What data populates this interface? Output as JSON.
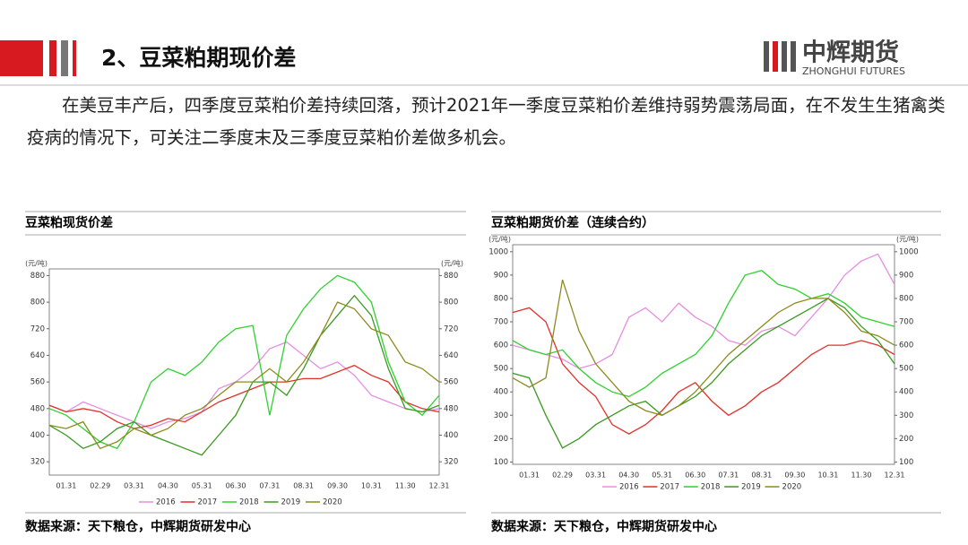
{
  "header": {
    "title": "2、豆菜粕期现价差",
    "logo": "中辉期货",
    "logo_sub": "ZHONGHUI FUTURES"
  },
  "paragraph": "在美豆丰产后，四季度豆菜粕价差持续回落，预计2021年一季度豆菜粕价差维持弱势震荡局面，在不发生生猪禽类疫病的情况下，可关注二季度末及三季度豆菜粕价差做多机会。",
  "chart_data": [
    {
      "type": "line",
      "title": "豆菜粕现货价差",
      "y_label": "(元/吨)",
      "y2_label": "(元/吨)",
      "source": "数据来源：天下粮仓，中辉期货研发中心",
      "categories": [
        null,
        "01.31",
        null,
        "02.29",
        null,
        "03.31",
        null,
        "04.30",
        null,
        "05.31",
        null,
        "06.30",
        null,
        "07.31",
        null,
        "08.31",
        null,
        "09.30",
        null,
        "10.31",
        null,
        "11.30",
        null,
        "12.31"
      ],
      "ylim": [
        280,
        900
      ],
      "yticks": [
        320,
        400,
        480,
        560,
        640,
        720,
        800,
        880
      ],
      "y2lim": [
        280,
        900
      ],
      "y2ticks": [
        320,
        400,
        480,
        560,
        640,
        720,
        800,
        880
      ],
      "series": [
        {
          "name": "2016",
          "color": "#e58ee0",
          "values": [
            490,
            470,
            500,
            480,
            460,
            440,
            420,
            440,
            450,
            470,
            540,
            560,
            600,
            660,
            680,
            640,
            600,
            620,
            580,
            520,
            500,
            480,
            470,
            480
          ]
        },
        {
          "name": "2017",
          "color": "#e0312a",
          "values": [
            490,
            470,
            480,
            470,
            440,
            420,
            430,
            450,
            440,
            470,
            500,
            520,
            540,
            560,
            560,
            570,
            570,
            590,
            610,
            580,
            560,
            500,
            480,
            470
          ]
        },
        {
          "name": "2018",
          "color": "#2fd12f",
          "values": [
            480,
            460,
            420,
            380,
            360,
            440,
            560,
            600,
            580,
            620,
            680,
            720,
            730,
            460,
            700,
            780,
            840,
            880,
            860,
            800,
            620,
            500,
            460,
            520
          ]
        },
        {
          "name": "2019",
          "color": "#3a9a20",
          "values": [
            430,
            400,
            360,
            380,
            420,
            440,
            400,
            380,
            360,
            340,
            400,
            460,
            560,
            560,
            520,
            600,
            700,
            760,
            820,
            760,
            600,
            480,
            470,
            490
          ]
        },
        {
          "name": "2020",
          "color": "#8c8a1e",
          "values": [
            430,
            420,
            440,
            360,
            380,
            420,
            400,
            420,
            460,
            480,
            520,
            560,
            560,
            600,
            560,
            620,
            700,
            800,
            780,
            720,
            700,
            620,
            600,
            560
          ]
        }
      ]
    },
    {
      "type": "line",
      "title": "豆菜粕期货价差（连续合约）",
      "y_label": "(元/吨)",
      "y2_label": "(元/吨)",
      "source": "数据来源：天下粮仓，中辉期货研发中心",
      "categories": [
        null,
        "01.31",
        null,
        "02.29",
        null,
        "03.31",
        null,
        "04.30",
        null,
        "05.31",
        null,
        "06.30",
        null,
        "07.31",
        null,
        "08.31",
        null,
        "09.30",
        null,
        "10.31",
        null,
        "11.30",
        null,
        "12.31"
      ],
      "ylim": [
        90,
        1030
      ],
      "yticks": [
        100,
        200,
        300,
        400,
        500,
        600,
        700,
        800,
        900,
        1000
      ],
      "y2lim": [
        90,
        1030
      ],
      "y2ticks": [
        100,
        200,
        300,
        400,
        500,
        600,
        700,
        800,
        900,
        1000
      ],
      "series": [
        {
          "name": "2016",
          "color": "#e58ee0",
          "values": [
            600,
            580,
            560,
            540,
            500,
            520,
            560,
            720,
            760,
            700,
            780,
            720,
            680,
            620,
            600,
            660,
            680,
            640,
            720,
            800,
            900,
            960,
            990,
            860
          ]
        },
        {
          "name": "2017",
          "color": "#e0312a",
          "values": [
            740,
            760,
            700,
            520,
            440,
            380,
            260,
            220,
            260,
            320,
            400,
            440,
            360,
            300,
            340,
            400,
            440,
            500,
            560,
            600,
            600,
            620,
            600,
            560
          ]
        },
        {
          "name": "2018",
          "color": "#2fd12f",
          "values": [
            620,
            580,
            560,
            580,
            500,
            440,
            400,
            380,
            420,
            480,
            520,
            560,
            640,
            780,
            900,
            920,
            860,
            840,
            800,
            820,
            780,
            720,
            700,
            680
          ]
        },
        {
          "name": "2019",
          "color": "#3a9a20",
          "values": [
            480,
            460,
            300,
            160,
            200,
            260,
            300,
            340,
            360,
            300,
            340,
            380,
            440,
            520,
            580,
            640,
            680,
            720,
            760,
            800,
            760,
            680,
            620,
            520
          ]
        },
        {
          "name": "2020",
          "color": "#8c8a1e",
          "values": [
            460,
            420,
            460,
            880,
            660,
            520,
            440,
            360,
            320,
            300,
            340,
            400,
            480,
            560,
            620,
            680,
            740,
            780,
            800,
            800,
            740,
            660,
            640,
            600
          ]
        }
      ]
    }
  ]
}
